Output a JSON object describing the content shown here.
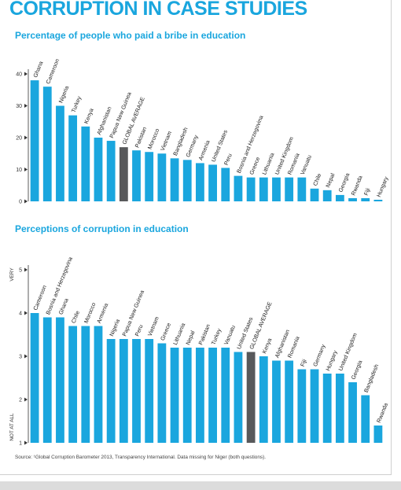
{
  "header": {
    "title": "CORRUPTION IN CASE STUDIES"
  },
  "footer": {
    "source": "Source: ¹Global Corruption Barometer 2013, Transparency International. Data missing for Niger (both questions)."
  },
  "colors": {
    "accent": "#1aa6de",
    "bar": "#1aa6de",
    "highlight": "#58595b",
    "axis": "#333333"
  },
  "chart_data": [
    {
      "type": "bar",
      "title": "Percentage of people who paid a bribe in education",
      "ylim": [
        0,
        40
      ],
      "yticks": [
        "0",
        "10",
        "20",
        "30",
        "40"
      ],
      "highlight": "GLOBAL AVERAGE",
      "categories": [
        "Ghana",
        "Cameroon",
        "Nigeria",
        "Turkey",
        "Kenya",
        "Afghanistan",
        "Papua New Guinea",
        "GLOBAL AVERAGE",
        "Pakistan",
        "Morocco",
        "Vietnam",
        "Bangladesh",
        "Germany",
        "Armenia",
        "United States",
        "Peru",
        "Bosnia and Herzegovina",
        "Greece",
        "Lithuania",
        "United Kingdom",
        "Romania",
        "Vanuatu",
        "Chile",
        "Nepal",
        "Georgia",
        "Rwanda",
        "Fiji",
        "Hungary"
      ],
      "values": [
        38,
        36,
        30,
        27,
        23.5,
        20,
        19,
        17,
        16,
        15.5,
        15,
        13.5,
        13,
        12,
        11.5,
        10.5,
        8,
        7.5,
        7.5,
        7.5,
        7.5,
        7.5,
        4,
        3.5,
        2,
        1,
        1,
        0.5
      ]
    },
    {
      "type": "bar",
      "title": "Perceptions of corruption in education",
      "ylim": [
        1,
        5
      ],
      "yticks": [
        "1",
        "2",
        "3",
        "4",
        "5"
      ],
      "ylabel_top": "VERY",
      "ylabel_bottom": "NOT AT ALL",
      "highlight": "GLOBAL AVERAGE",
      "categories": [
        "Cameroon",
        "Bosnia and Herzegovina",
        "Ghana",
        "Chile",
        "Morocco",
        "Armenia",
        "Nigeria",
        "Papua New Guinea",
        "Peru",
        "Vietnam",
        "Greece",
        "Lithuania",
        "Nepal",
        "Pakistan",
        "Turkey",
        "Vanuatu",
        "United States",
        "GLOBAL AVERAGE",
        "Kenya",
        "Afghanistan",
        "Romania",
        "Fiji",
        "Germany",
        "Hungary",
        "United Kingdom",
        "Georgia",
        "Bangladesh",
        "Rwanda"
      ],
      "values": [
        4,
        3.9,
        3.9,
        3.7,
        3.7,
        3.7,
        3.4,
        3.4,
        3.4,
        3.4,
        3.3,
        3.2,
        3.2,
        3.2,
        3.2,
        3.2,
        3.1,
        3.1,
        3,
        2.9,
        2.9,
        2.7,
        2.7,
        2.6,
        2.6,
        2.4,
        2.1,
        1.4
      ]
    }
  ]
}
